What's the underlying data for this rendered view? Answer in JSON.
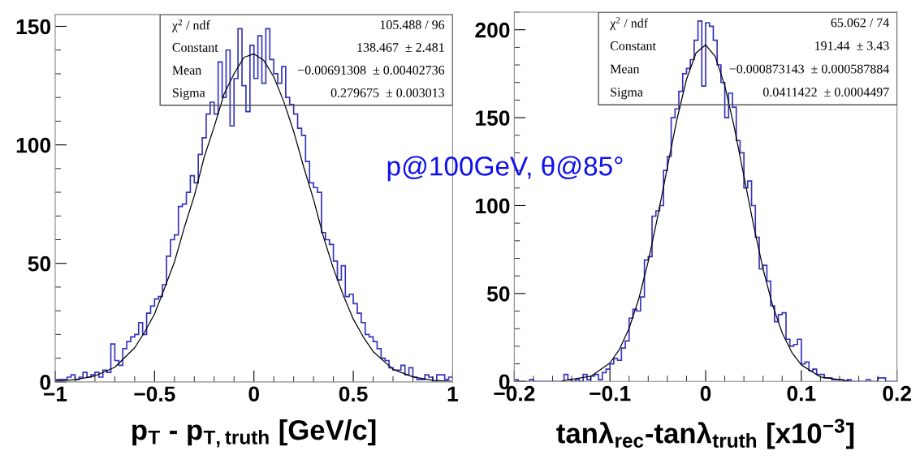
{
  "chart_data": [
    {
      "type": "histogram",
      "xlabel": "p$_{T}$ - p$_{T,truth}$ [GeV/c]",
      "xlim": [
        -1,
        1
      ],
      "xticks": [
        -1,
        -0.5,
        0,
        0.5,
        1
      ],
      "ylim": [
        0,
        155
      ],
      "yticks": [
        0,
        50,
        100,
        150
      ],
      "grid": false,
      "legend": false,
      "bins": [
        -1.0,
        -0.98,
        -0.96,
        -0.94,
        -0.92,
        -0.9,
        -0.88,
        -0.86,
        -0.84,
        -0.82,
        -0.8,
        -0.78,
        -0.76,
        -0.74,
        -0.72,
        -0.7,
        -0.68,
        -0.66,
        -0.64,
        -0.62,
        -0.6,
        -0.58,
        -0.56,
        -0.54,
        -0.52,
        -0.5,
        -0.48,
        -0.46,
        -0.44,
        -0.42,
        -0.4,
        -0.38,
        -0.36,
        -0.34,
        -0.32,
        -0.3,
        -0.28,
        -0.26,
        -0.24,
        -0.22,
        -0.2,
        -0.18,
        -0.16,
        -0.14,
        -0.12,
        -0.1,
        -0.08,
        -0.06,
        -0.04,
        -0.02,
        0.0,
        0.02,
        0.04,
        0.06,
        0.08,
        0.1,
        0.12,
        0.14,
        0.16,
        0.18,
        0.2,
        0.22,
        0.24,
        0.26,
        0.28,
        0.3,
        0.32,
        0.34,
        0.36,
        0.38,
        0.4,
        0.42,
        0.44,
        0.46,
        0.48,
        0.5,
        0.52,
        0.54,
        0.56,
        0.58,
        0.6,
        0.62,
        0.64,
        0.66,
        0.68,
        0.7,
        0.72,
        0.74,
        0.76,
        0.78,
        0.8,
        0.82,
        0.84,
        0.86,
        0.88,
        0.9,
        0.92,
        0.94,
        0.96,
        0.98,
        1.0
      ],
      "series": [
        {
          "color": "#3333bb",
          "values": [
            1,
            1,
            1,
            2,
            3,
            1,
            2,
            4,
            2,
            3,
            4,
            2,
            5,
            4,
            16,
            9,
            7,
            14,
            17,
            19,
            20,
            25,
            20,
            29,
            32,
            35,
            36,
            41,
            53,
            60,
            62,
            74,
            75,
            80,
            87,
            84,
            96,
            103,
            113,
            118,
            113,
            135,
            120,
            140,
            108,
            128,
            149,
            125,
            114,
            142,
            128,
            146,
            126,
            149,
            136,
            130,
            126,
            133,
            120,
            117,
            113,
            107,
            104,
            93,
            84,
            82,
            80,
            63,
            60,
            58,
            51,
            43,
            49,
            36,
            37,
            33,
            29,
            25,
            20,
            19,
            17,
            14,
            10,
            9,
            6,
            5,
            5,
            7,
            3,
            6,
            2,
            1,
            1,
            3,
            2,
            0,
            3,
            3,
            1,
            2
          ]
        },
        {
          "type": "line",
          "color": "#000000",
          "x": [
            -1,
            -0.9,
            -0.8,
            -0.7,
            -0.6,
            -0.55,
            -0.5,
            -0.45,
            -0.4,
            -0.35,
            -0.3,
            -0.25,
            -0.2,
            -0.15,
            -0.1,
            -0.05,
            0,
            0.05,
            0.1,
            0.15,
            0.2,
            0.25,
            0.3,
            0.35,
            0.4,
            0.45,
            0.5,
            0.55,
            0.6,
            0.7,
            0.8,
            0.9,
            1
          ],
          "values": [
            0.3,
            0.9,
            2.5,
            6.2,
            14.4,
            21.0,
            28.7,
            39.5,
            50.6,
            65.2,
            78.5,
            94.9,
            107.6,
            121.5,
            130,
            136.9,
            138.4,
            135.6,
            128.7,
            118.3,
            105.7,
            90.8,
            77.0,
            61.2,
            47.8,
            36.5,
            26.5,
            19.0,
            12.8,
            5.3,
            2.1,
            0.7,
            0.2
          ]
        }
      ],
      "annotations": [
        "χ$^{2}$ / ndf",
        "105.488 / 96",
        "Constant",
        "138.467  ± 2.481",
        "Mean",
        "−0.00691308  ± 0.00402736",
        "Sigma",
        "0.279675  ± 0.003013",
        "p@100GeV, θ@85°"
      ]
    },
    {
      "type": "histogram",
      "xlabel": "tanλ$_{rec}$-tanλ$_{truth}$ [x10$^{−3}$]",
      "xlim": [
        -0.2,
        0.2
      ],
      "xticks": [
        -0.2,
        -0.1,
        0,
        0.1,
        0.2
      ],
      "ylim": [
        0,
        210
      ],
      "yticks": [
        0,
        50,
        100,
        150,
        200
      ],
      "grid": false,
      "legend": false,
      "bins": [
        -0.2,
        -0.196,
        -0.192,
        -0.188,
        -0.184,
        -0.18,
        -0.176,
        -0.172,
        -0.168,
        -0.164,
        -0.16,
        -0.156,
        -0.152,
        -0.148,
        -0.144,
        -0.14,
        -0.136,
        -0.132,
        -0.128,
        -0.124,
        -0.12,
        -0.116,
        -0.112,
        -0.108,
        -0.104,
        -0.1,
        -0.096,
        -0.092,
        -0.088,
        -0.084,
        -0.08,
        -0.076,
        -0.072,
        -0.068,
        -0.064,
        -0.06,
        -0.056,
        -0.052,
        -0.048,
        -0.044,
        -0.04,
        -0.036,
        -0.032,
        -0.028,
        -0.024,
        -0.02,
        -0.016,
        -0.012,
        -0.008,
        -0.004,
        0.0,
        0.004,
        0.008,
        0.012,
        0.016,
        0.02,
        0.024,
        0.028,
        0.032,
        0.036,
        0.04,
        0.044,
        0.048,
        0.052,
        0.056,
        0.06,
        0.064,
        0.068,
        0.072,
        0.076,
        0.08,
        0.084,
        0.088,
        0.092,
        0.096,
        0.1,
        0.104,
        0.108,
        0.112,
        0.116,
        0.12,
        0.124,
        0.128,
        0.132,
        0.136,
        0.14,
        0.144,
        0.148,
        0.152,
        0.156,
        0.16,
        0.164,
        0.168,
        0.172,
        0.176,
        0.18,
        0.184,
        0.188,
        0.192,
        0.196,
        0.2
      ],
      "series": [
        {
          "color": "#3333bb",
          "values": [
            1,
            0,
            0,
            0,
            1,
            0,
            0,
            0,
            0,
            0,
            0,
            0,
            0,
            4,
            1,
            0,
            1,
            0,
            4,
            1,
            3,
            4,
            1,
            5,
            7,
            10,
            13,
            12,
            19,
            23,
            36,
            41,
            40,
            48,
            69,
            71,
            94,
            97,
            100,
            120,
            128,
            150,
            155,
            165,
            175,
            178,
            183,
            194,
            205,
            168,
            204,
            202,
            194,
            180,
            170,
            150,
            164,
            156,
            137,
            130,
            110,
            114,
            100,
            82,
            64,
            66,
            57,
            43,
            34,
            38,
            39,
            24,
            20,
            21,
            24,
            10,
            11,
            6,
            7,
            4,
            4,
            2,
            2,
            1,
            1,
            1,
            0,
            1,
            0,
            0,
            0,
            0,
            1,
            0,
            0,
            2,
            2,
            0,
            0,
            0
          ]
        },
        {
          "type": "line",
          "color": "#000000",
          "x": [
            -0.15,
            -0.12,
            -0.1,
            -0.09,
            -0.08,
            -0.07,
            -0.06,
            -0.05,
            -0.04,
            -0.03,
            -0.02,
            -0.01,
            0,
            0.01,
            0.02,
            0.03,
            0.04,
            0.05,
            0.06,
            0.07,
            0.08,
            0.09,
            0.1,
            0.12,
            0.15
          ],
          "values": [
            0.3,
            2.9,
            10.5,
            18.3,
            30.2,
            46.7,
            68.2,
            94.0,
            121.8,
            149.0,
            171.8,
            186.8,
            191.4,
            184.8,
            168.2,
            144.3,
            116.8,
            89.1,
            63.9,
            43.3,
            27.6,
            16.6,
            9.4,
            2.5,
            0.2
          ]
        }
      ],
      "annotations": [
        "χ$^{2}$ / ndf",
        "65.062 / 74",
        "Constant",
        "191.44  ± 3.43",
        "Mean",
        "−0.000873143  ± 0.000587884",
        "Sigma",
        "0.0411422  ± 0.0004497"
      ]
    }
  ]
}
